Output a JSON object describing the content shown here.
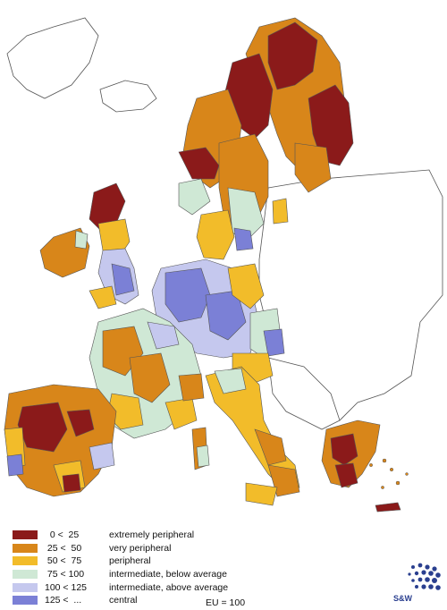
{
  "legend": {
    "items": [
      {
        "range": "  0 <  25",
        "label": "extremely peripheral",
        "color": "#8b1a1a"
      },
      {
        "range": " 25 <  50",
        "label": "very peripheral",
        "color": "#d8861a"
      },
      {
        "range": " 50 <  75",
        "label": "peripheral",
        "color": "#f2bc2a"
      },
      {
        "range": " 75 < 100",
        "label": "intermediate, below average",
        "color": "#cfe8d5"
      },
      {
        "range": "100 < 125",
        "label": "intermediate, above average",
        "color": "#c5c8ee"
      },
      {
        "range": "125 <  ...",
        "label": "central",
        "color": "#7b80d6"
      }
    ],
    "note": "EU = 100"
  },
  "logo": {
    "text": "S&W"
  },
  "colors": {
    "background": "#ffffff",
    "non_eu_fill": "#ffffff",
    "border": "#555555"
  }
}
